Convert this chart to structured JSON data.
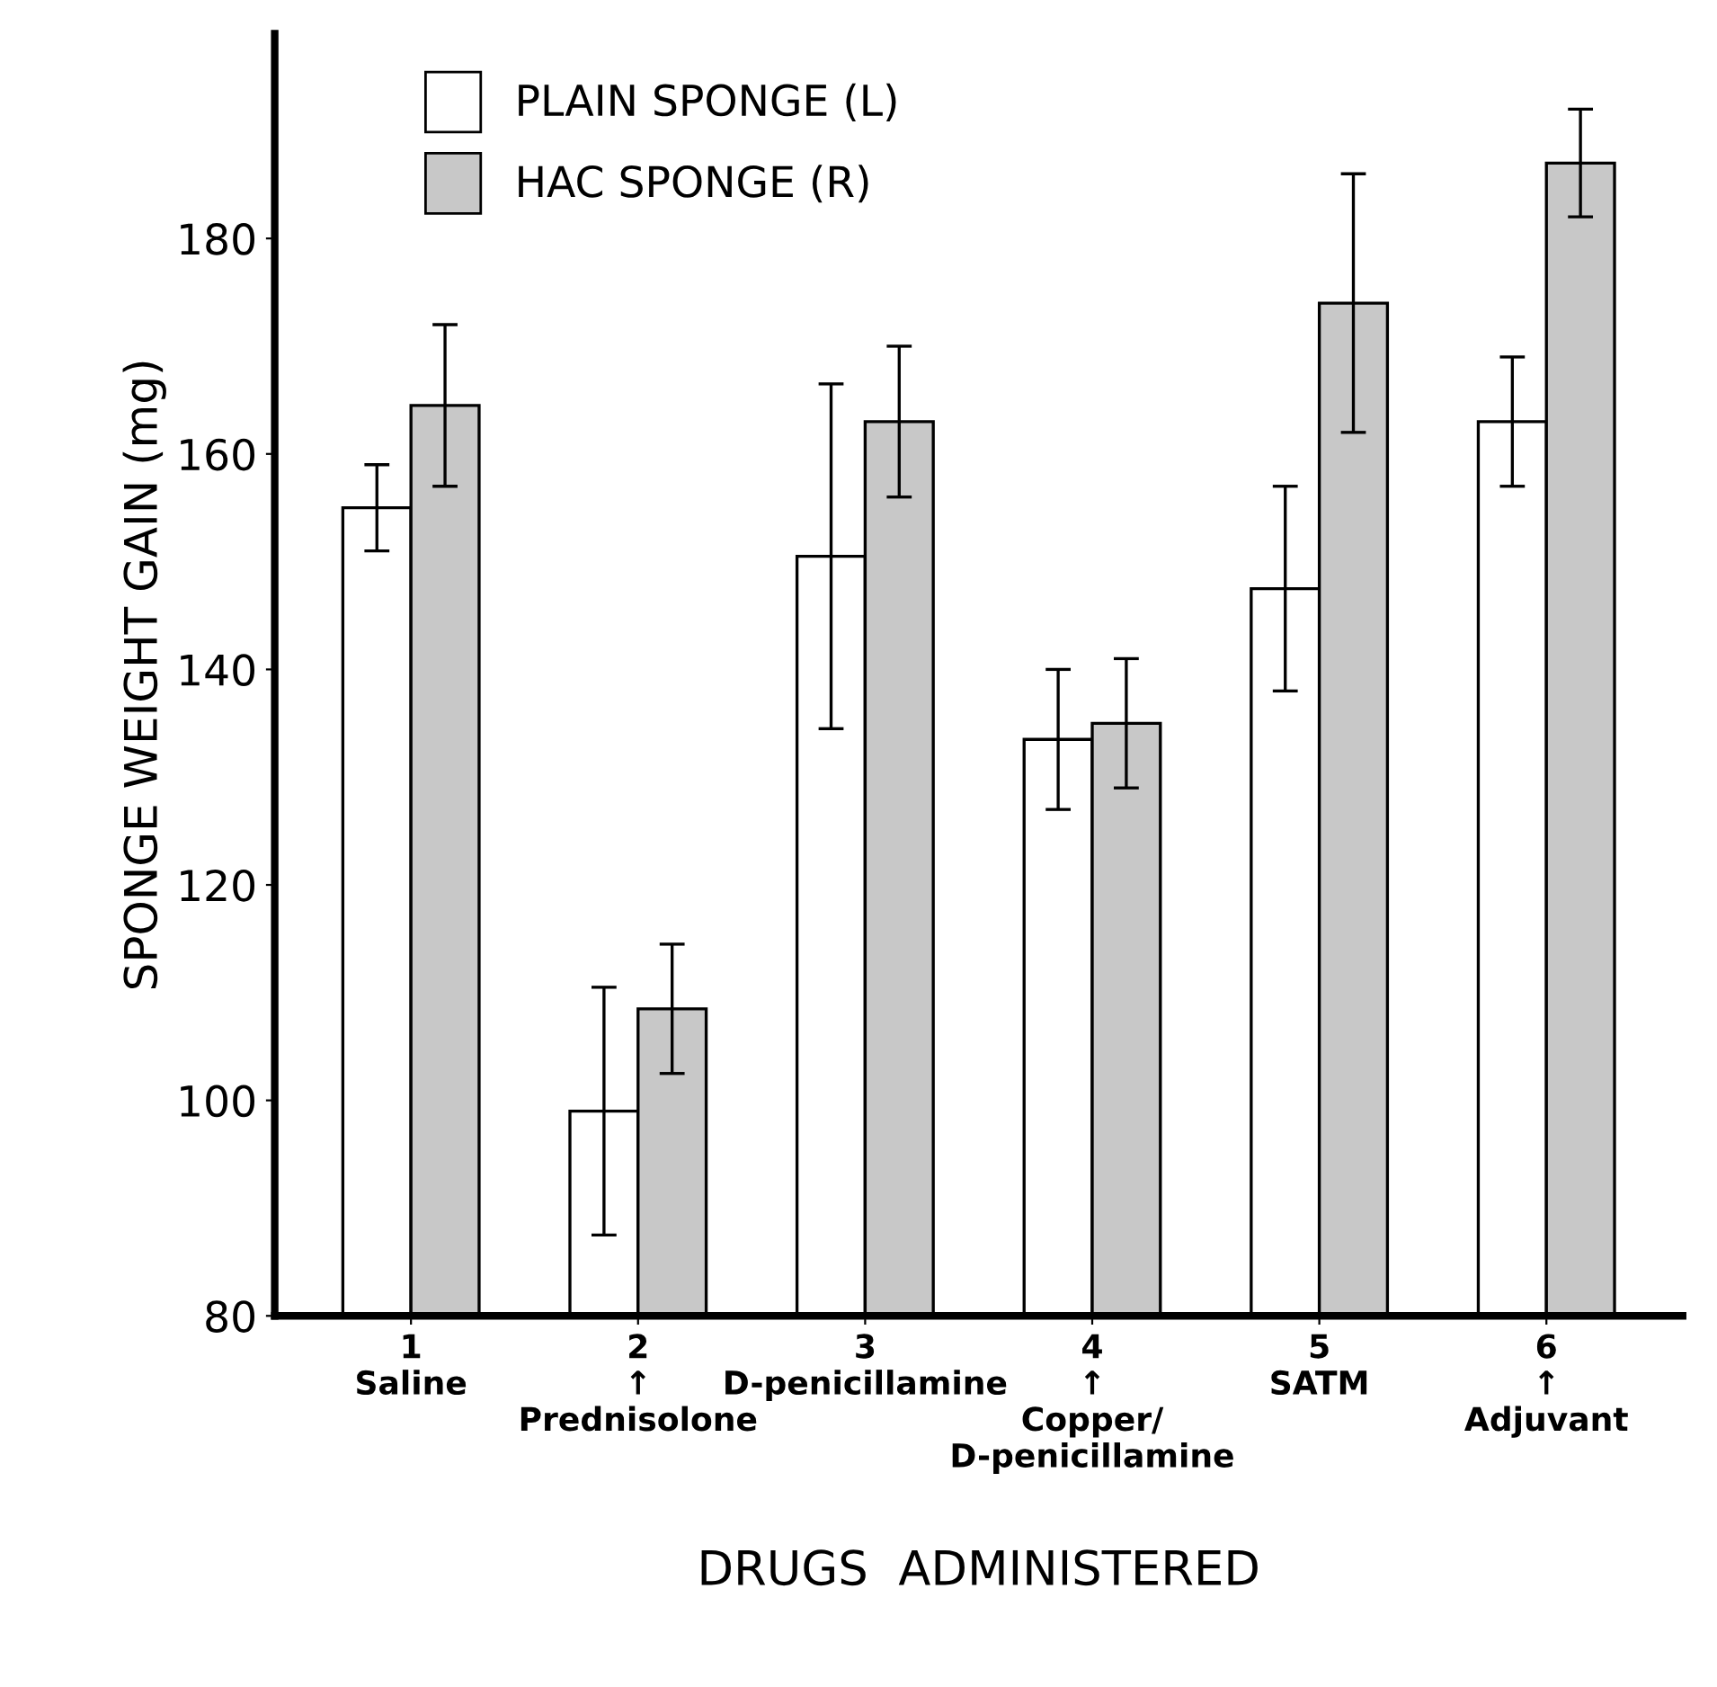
{
  "chart_data": {
    "type": "bar",
    "xlabel": "DRUGS  ADMINISTERED",
    "ylabel": "SPONGE WEIGHT GAIN (mg)",
    "categories": [
      "1\nSaline",
      "2\n↑\nPrednisolone",
      "3\nD-penicillamine",
      "4\n↑\nCopper/\nD-penicillamine",
      "5\nSATM",
      "6\n↑\nAdjuvant"
    ],
    "series": [
      {
        "name": "PLAIN SPONGE (L)",
        "color": "#ffffff",
        "values": [
          155,
          99,
          150.5,
          133.5,
          147.5,
          163
        ],
        "errors": [
          4,
          11.5,
          16,
          6.5,
          9.5,
          6
        ]
      },
      {
        "name": "HAC SPONGE (R)",
        "color": "#c8c8c8",
        "values": [
          164.5,
          108.5,
          163,
          135,
          174,
          187
        ],
        "errors": [
          7.5,
          6,
          7,
          6,
          12,
          5
        ]
      }
    ],
    "ylim": [
      80,
      199
    ],
    "yticks": [
      80,
      100,
      120,
      140,
      160,
      180
    ],
    "grid": false,
    "legend": "top left"
  }
}
